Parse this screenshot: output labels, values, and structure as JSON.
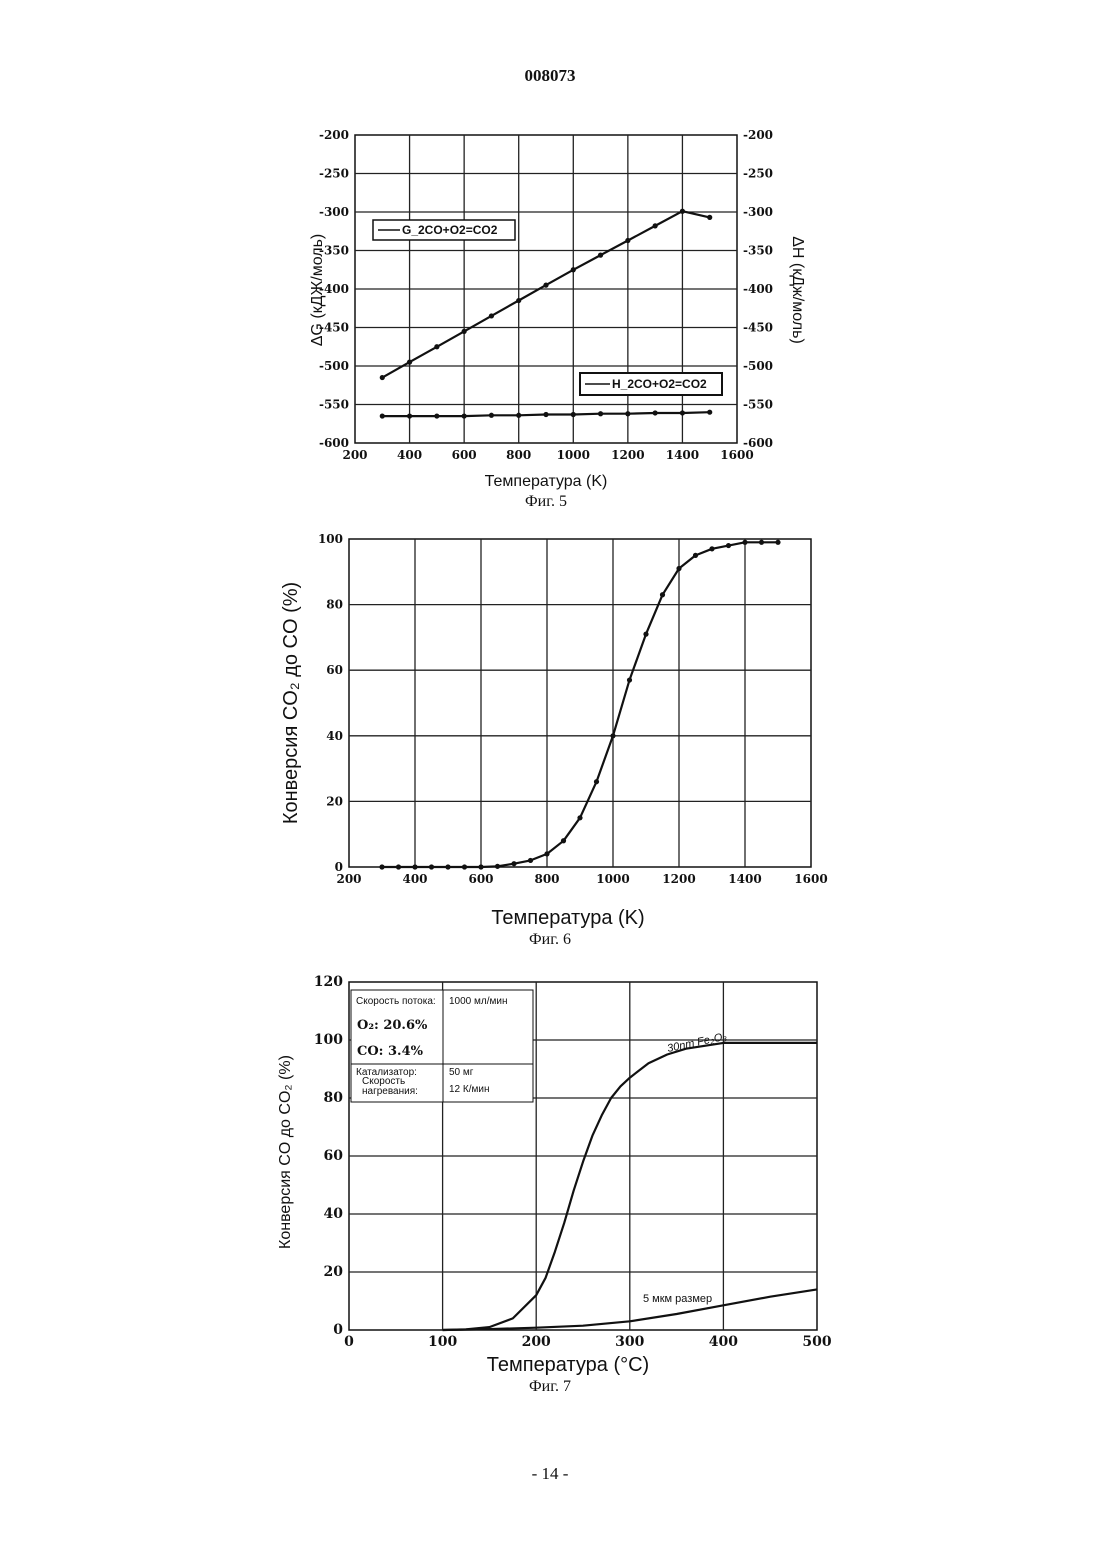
{
  "page": {
    "doc_number": "008073",
    "page_number": "- 14 -"
  },
  "chart_data": [
    {
      "type": "line",
      "caption": "Фиг. 5",
      "xlabel": "Температура (K)",
      "ylabel_left": "ΔG (кДЖ/моль)",
      "ylabel_right": "ΔH (кДж/моль)",
      "xlim": [
        200,
        1600
      ],
      "ylim": [
        -600,
        -200
      ],
      "x_ticks": [
        "200",
        "400",
        "600",
        "800",
        "1000",
        "1200",
        "1400",
        "1600"
      ],
      "y_ticks_left": [
        "-200",
        "-250",
        "-300",
        "-350",
        "-400",
        "-450",
        "-500",
        "-550",
        "-600"
      ],
      "y_ticks_right": [
        "-200",
        "-250",
        "-300",
        "-350",
        "-400",
        "-450",
        "-500",
        "-550",
        "-600"
      ],
      "grid": true,
      "series": [
        {
          "name": "G_2CO+O2=CO2",
          "x": [
            300,
            400,
            500,
            600,
            700,
            800,
            900,
            1000,
            1100,
            1200,
            1300,
            1400,
            1500
          ],
          "y": [
            -515,
            -495,
            -475,
            -455,
            -435,
            -415,
            -395,
            -375,
            -356,
            -337,
            -318,
            -299,
            -307
          ]
        },
        {
          "name": "H_2CO+O2=CO2",
          "x": [
            300,
            400,
            500,
            600,
            700,
            800,
            900,
            1000,
            1100,
            1200,
            1300,
            1400,
            1500
          ],
          "y": [
            -565,
            -565,
            -565,
            -565,
            -564,
            -564,
            -563,
            -563,
            -562,
            -562,
            -561,
            -561,
            -560
          ]
        }
      ]
    },
    {
      "type": "line",
      "caption": "Фиг. 6",
      "xlabel": "Температура (K)",
      "ylabel": "Конверсия CO₂ до CO (%)",
      "xlim": [
        200,
        1600
      ],
      "ylim": [
        0,
        100
      ],
      "x_ticks": [
        "200",
        "400",
        "600",
        "800",
        "1000",
        "1200",
        "1400",
        "1600"
      ],
      "y_ticks": [
        "0",
        "20",
        "40",
        "60",
        "80",
        "100"
      ],
      "grid": true,
      "series": [
        {
          "x": [
            300,
            350,
            400,
            450,
            500,
            550,
            600,
            650,
            700,
            750,
            800,
            850,
            900,
            950,
            1000,
            1050,
            1100,
            1150,
            1200,
            1250,
            1300,
            1350,
            1400,
            1450,
            1500
          ],
          "y": [
            0,
            0,
            0,
            0,
            0,
            0,
            0,
            0.2,
            1,
            2,
            4,
            8,
            15,
            26,
            40,
            57,
            71,
            83,
            91,
            95,
            97,
            98,
            99,
            99,
            99
          ]
        }
      ]
    },
    {
      "type": "line",
      "caption": "Фиг. 7",
      "xlabel": "Температура (°C)",
      "ylabel": "Конверсия CO до CO₂ (%)",
      "xlim": [
        0,
        500
      ],
      "ylim": [
        0,
        120
      ],
      "x_ticks": [
        "0",
        "100",
        "200",
        "300",
        "400",
        "500"
      ],
      "y_ticks": [
        "0",
        "20",
        "40",
        "60",
        "80",
        "100",
        "120"
      ],
      "grid": true,
      "info": {
        "flow_label": "Скорость потока:",
        "flow_value": "1000 мл/мин",
        "o2": "O₂: 20.6%",
        "co": "CO: 3.4%",
        "catalyst_label": "Катализатор:",
        "catalyst_value": "50 мг",
        "heating_label_1": "Скорость",
        "heating_label_2": "нагревания:",
        "heating_value": "12 К/мин"
      },
      "annotations": [
        "30nm Fe₂O₃",
        "5 мкм размер"
      ],
      "series": [
        {
          "label": "30nm Fe₂O₃",
          "x": [
            100,
            125,
            150,
            175,
            200,
            210,
            220,
            230,
            240,
            250,
            260,
            270,
            280,
            290,
            300,
            320,
            340,
            360,
            380,
            400,
            420,
            440,
            460,
            480,
            500
          ],
          "y": [
            0,
            0.2,
            1,
            4,
            12,
            18,
            27,
            37,
            48,
            58,
            67,
            74,
            80,
            84,
            87,
            92,
            95,
            97,
            98,
            99,
            99,
            99,
            99,
            99,
            99
          ]
        },
        {
          "label": "5 мкм размер",
          "x": [
            100,
            150,
            200,
            250,
            300,
            350,
            400,
            450,
            500
          ],
          "y": [
            0,
            0.3,
            0.8,
            1.5,
            3,
            5.5,
            8.5,
            11.5,
            14
          ]
        }
      ]
    }
  ]
}
